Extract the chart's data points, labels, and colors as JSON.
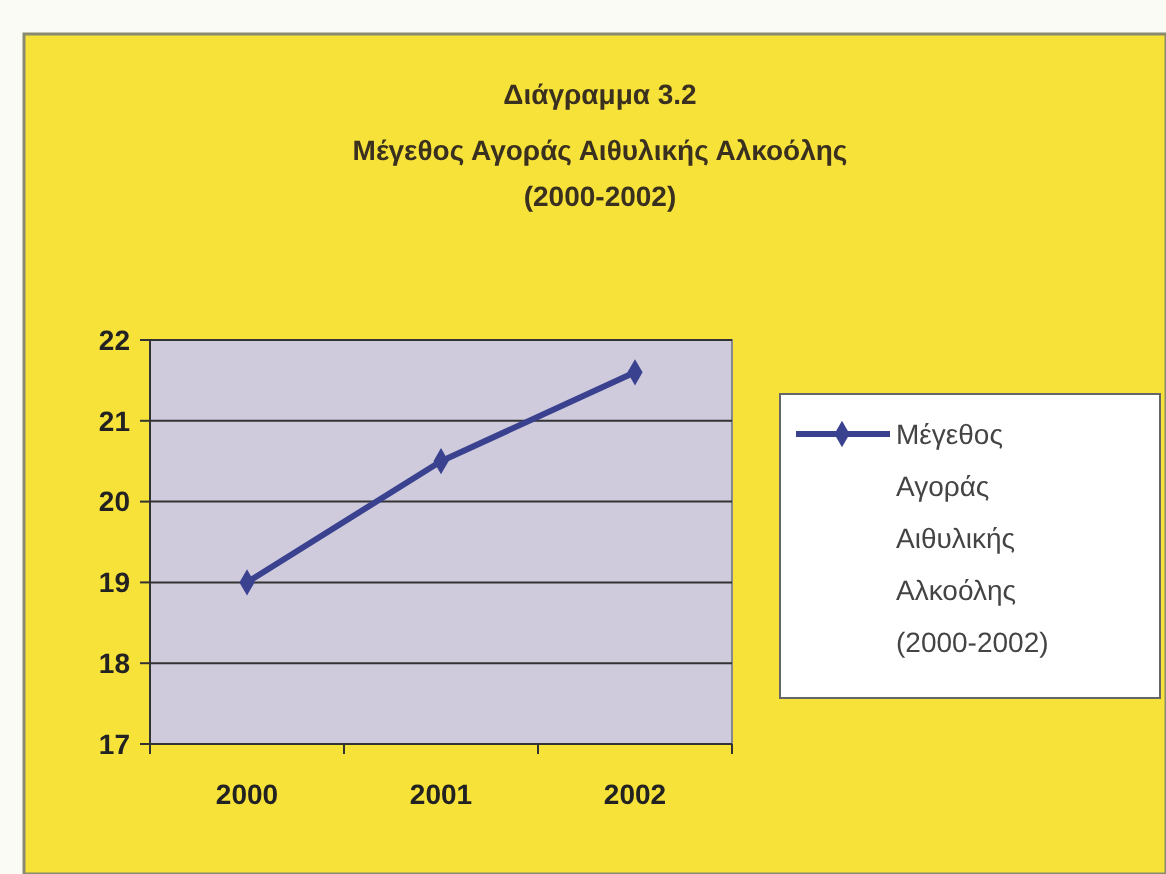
{
  "chart_data": {
    "type": "line",
    "title": "Διάγραμμα 3.2",
    "subtitle": "Μέγεθος Αγοράς Αιθυλικής Αλκοόλης\n(2000-2002)",
    "categories": [
      "2000",
      "2001",
      "2002"
    ],
    "series": [
      {
        "name": "Μέγεθος Αγοράς Αιθυλικής Αλκοόλης (2000-2002)",
        "color": "#3a4290",
        "values": [
          19,
          20.5,
          21.6
        ]
      }
    ],
    "ylim": [
      17,
      22
    ],
    "yticks": [
      17,
      18,
      19,
      20,
      21,
      22
    ],
    "grid": "y",
    "legend": "right",
    "marker": "diamond",
    "line_style": "solid"
  }
}
